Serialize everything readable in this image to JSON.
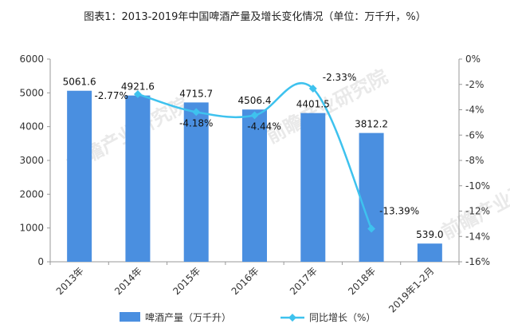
{
  "chart_data": {
    "type": "bar+line",
    "title": "图表1：2013-2019年中国啤酒产量及增长变化情况（单位：万千升，%）",
    "categories": [
      "2013年",
      "2014年",
      "2015年",
      "2016年",
      "2017年",
      "2018年",
      "2019年1-2月"
    ],
    "series": [
      {
        "name": "啤酒产量（万千升）",
        "type": "bar",
        "axis": "left",
        "values": [
          5061.6,
          4921.6,
          4715.7,
          4506.4,
          4401.5,
          3812.2,
          539.0
        ],
        "labels": [
          "5061.6",
          "4921.6",
          "4715.7",
          "4506.4",
          "4401.5",
          "3812.2",
          "539.0"
        ],
        "color": "#4a8fe0"
      },
      {
        "name": "同比增长（%）",
        "type": "line",
        "axis": "right",
        "x": [
          "2014年",
          "2015年",
          "2016年",
          "2017年",
          "2018年"
        ],
        "values": [
          -2.77,
          -4.18,
          -4.44,
          -2.33,
          -13.39
        ],
        "labels": [
          "-2.77%",
          "-4.18%",
          "-4.44%",
          "-2.33%",
          "-13.39%"
        ],
        "color": "#3ec2ee"
      }
    ],
    "y_left": {
      "range": [
        0,
        6000
      ],
      "ticks": [
        "0",
        "1000",
        "2000",
        "3000",
        "4000",
        "5000",
        "6000"
      ]
    },
    "y_right": {
      "range": [
        -16,
        0
      ],
      "ticks": [
        "0%",
        "-2%",
        "-4%",
        "-6%",
        "-8%",
        "-10%",
        "-12%",
        "-14%",
        "-16%"
      ]
    },
    "grid": false,
    "legend_position": "bottom"
  },
  "watermark": "前瞻产业研究院"
}
